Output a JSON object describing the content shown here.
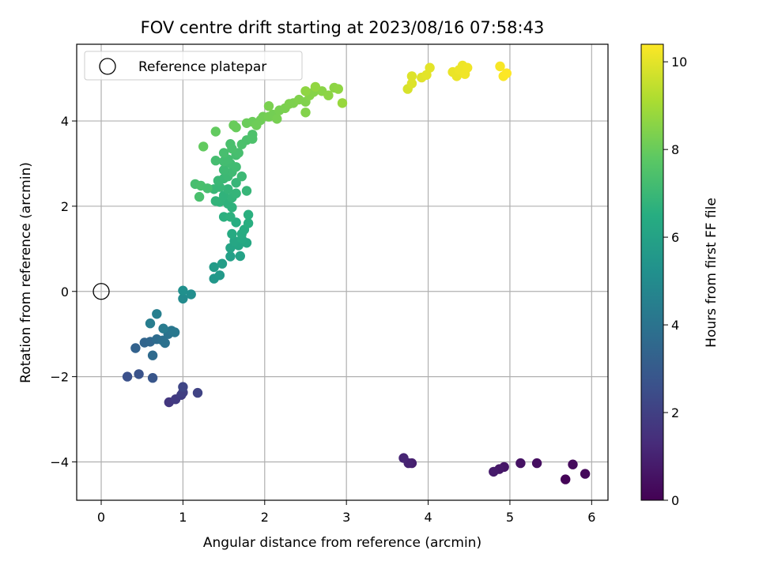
{
  "chart_data": {
    "type": "scatter",
    "title": "FOV centre drift starting at 2023/08/16 07:58:43",
    "xlabel": "Angular distance from reference (arcmin)",
    "ylabel": "Rotation from reference (arcmin)",
    "xlim": [
      -0.3,
      6.2
    ],
    "ylim": [
      -4.9,
      5.8
    ],
    "xticks": [
      0,
      1,
      2,
      3,
      4,
      5,
      6
    ],
    "yticks": [
      -4,
      -2,
      0,
      2,
      4
    ],
    "grid": true,
    "legend": {
      "position": "top-left",
      "entries": [
        "Reference platepar"
      ]
    },
    "reference_point": {
      "x": 0,
      "y": 0,
      "label": "Reference platepar"
    },
    "colorbar": {
      "label": "Hours from first FF file",
      "colormap": "viridis",
      "range": [
        0,
        10.4
      ],
      "ticks": [
        0,
        2,
        4,
        6,
        8,
        10
      ]
    },
    "series": [
      {
        "points": [
          [
            5.68,
            -4.41,
            0.1
          ],
          [
            5.92,
            -4.28,
            0.2
          ],
          [
            5.77,
            -4.06,
            0.3
          ],
          [
            5.33,
            -4.03,
            0.4
          ],
          [
            5.13,
            -4.03,
            0.5
          ],
          [
            4.93,
            -4.12,
            0.6
          ],
          [
            4.87,
            -4.17,
            0.7
          ],
          [
            4.8,
            -4.23,
            0.8
          ],
          [
            3.8,
            -4.03,
            0.9
          ],
          [
            3.76,
            -4.03,
            1.0
          ],
          [
            3.7,
            -3.91,
            1.1
          ],
          [
            0.83,
            -2.6,
            1.7
          ],
          [
            0.91,
            -2.53,
            1.8
          ],
          [
            0.98,
            -2.43,
            1.9
          ],
          [
            1.0,
            -2.37,
            2.0
          ],
          [
            1.18,
            -2.38,
            2.1
          ],
          [
            1.0,
            -2.24,
            2.2
          ],
          [
            0.32,
            -2.0,
            2.6
          ],
          [
            0.46,
            -1.94,
            2.7
          ],
          [
            0.63,
            -2.03,
            2.8
          ],
          [
            0.42,
            -1.33,
            3.3
          ],
          [
            0.53,
            -1.2,
            3.4
          ],
          [
            0.6,
            -1.18,
            3.5
          ],
          [
            0.63,
            -1.5,
            3.6
          ],
          [
            0.68,
            -1.12,
            3.7
          ],
          [
            0.75,
            -1.15,
            3.8
          ],
          [
            0.78,
            -1.21,
            3.9
          ],
          [
            0.82,
            -1.0,
            4.0
          ],
          [
            0.86,
            -0.92,
            4.1
          ],
          [
            0.9,
            -0.96,
            4.2
          ],
          [
            0.76,
            -0.87,
            4.3
          ],
          [
            0.6,
            -0.75,
            4.4
          ],
          [
            0.68,
            -0.53,
            4.5
          ],
          [
            1.0,
            -0.17,
            5.0
          ],
          [
            1.1,
            -0.07,
            5.1
          ],
          [
            1.0,
            0.02,
            5.2
          ],
          [
            1.38,
            0.3,
            5.5
          ],
          [
            1.45,
            0.38,
            5.6
          ],
          [
            1.38,
            0.57,
            5.7
          ],
          [
            1.48,
            0.65,
            5.8
          ],
          [
            1.58,
            0.82,
            5.9
          ],
          [
            1.7,
            0.83,
            6.0
          ],
          [
            1.58,
            1.02,
            6.1
          ],
          [
            1.68,
            1.08,
            6.15
          ],
          [
            1.63,
            1.18,
            6.2
          ],
          [
            1.78,
            1.14,
            6.25
          ],
          [
            1.72,
            1.23,
            6.3
          ],
          [
            1.6,
            1.35,
            6.35
          ],
          [
            1.72,
            1.35,
            6.4
          ],
          [
            1.75,
            1.45,
            6.45
          ],
          [
            1.65,
            1.62,
            6.5
          ],
          [
            1.8,
            1.6,
            6.55
          ],
          [
            1.8,
            1.8,
            6.6
          ],
          [
            1.5,
            1.75,
            6.6
          ],
          [
            1.58,
            1.75,
            6.65
          ],
          [
            1.6,
            1.97,
            6.7
          ],
          [
            1.55,
            2.06,
            6.7
          ],
          [
            1.45,
            2.1,
            6.75
          ],
          [
            1.5,
            2.25,
            6.75
          ],
          [
            1.4,
            2.12,
            6.8
          ],
          [
            1.6,
            2.2,
            6.8
          ],
          [
            1.55,
            2.4,
            6.85
          ],
          [
            1.65,
            2.3,
            6.85
          ],
          [
            1.78,
            2.36,
            6.9
          ],
          [
            1.65,
            2.55,
            6.9
          ],
          [
            1.45,
            2.45,
            6.95
          ],
          [
            1.38,
            2.4,
            6.95
          ],
          [
            1.43,
            2.6,
            7.0
          ],
          [
            1.5,
            2.65,
            7.0
          ],
          [
            1.55,
            2.7,
            7.05
          ],
          [
            1.72,
            2.7,
            7.05
          ],
          [
            1.6,
            2.8,
            7.1
          ],
          [
            1.5,
            2.85,
            7.1
          ],
          [
            1.65,
            2.92,
            7.15
          ],
          [
            1.58,
            3.0,
            7.15
          ],
          [
            1.5,
            3.05,
            7.2
          ],
          [
            1.55,
            3.1,
            7.2
          ],
          [
            1.4,
            3.07,
            7.25
          ],
          [
            1.65,
            3.2,
            7.25
          ],
          [
            1.5,
            3.25,
            7.3
          ],
          [
            1.68,
            3.25,
            7.3
          ],
          [
            1.6,
            3.35,
            7.35
          ],
          [
            1.58,
            3.46,
            7.35
          ],
          [
            1.72,
            3.45,
            7.4
          ],
          [
            1.78,
            3.55,
            7.4
          ],
          [
            1.85,
            3.58,
            7.45
          ],
          [
            1.85,
            3.68,
            7.45
          ],
          [
            1.15,
            2.52,
            7.3
          ],
          [
            1.22,
            2.48,
            7.35
          ],
          [
            1.3,
            2.42,
            7.3
          ],
          [
            1.2,
            2.22,
            7.35
          ],
          [
            1.25,
            3.4,
            7.9
          ],
          [
            1.4,
            3.75,
            7.9
          ],
          [
            1.65,
            3.85,
            8.0
          ],
          [
            1.62,
            3.9,
            8.0
          ],
          [
            1.78,
            3.95,
            8.05
          ],
          [
            1.85,
            3.98,
            8.05
          ],
          [
            1.9,
            3.9,
            8.1
          ],
          [
            1.95,
            4.02,
            8.1
          ],
          [
            1.98,
            4.1,
            8.15
          ],
          [
            2.05,
            4.1,
            8.2
          ],
          [
            2.1,
            4.15,
            8.2
          ],
          [
            2.15,
            4.05,
            8.25
          ],
          [
            2.18,
            4.25,
            8.25
          ],
          [
            2.05,
            4.35,
            8.3
          ],
          [
            2.25,
            4.3,
            8.3
          ],
          [
            2.3,
            4.4,
            8.35
          ],
          [
            2.35,
            4.42,
            8.35
          ],
          [
            2.42,
            4.5,
            8.4
          ],
          [
            2.5,
            4.45,
            8.4
          ],
          [
            2.5,
            4.2,
            8.45
          ],
          [
            2.55,
            4.6,
            8.5
          ],
          [
            2.6,
            4.68,
            8.5
          ],
          [
            2.7,
            4.7,
            8.55
          ],
          [
            2.78,
            4.6,
            8.6
          ],
          [
            2.85,
            4.78,
            8.6
          ],
          [
            2.9,
            4.75,
            8.65
          ],
          [
            2.5,
            4.7,
            8.65
          ],
          [
            2.62,
            4.8,
            8.7
          ],
          [
            2.95,
            4.42,
            8.8
          ],
          [
            3.75,
            4.75,
            9.8
          ],
          [
            3.8,
            4.88,
            9.9
          ],
          [
            3.8,
            5.05,
            9.9
          ],
          [
            3.92,
            5.02,
            9.95
          ],
          [
            3.98,
            5.08,
            10.0
          ],
          [
            4.02,
            5.25,
            10.0
          ],
          [
            4.3,
            5.15,
            10.1
          ],
          [
            4.35,
            5.05,
            10.1
          ],
          [
            4.38,
            5.2,
            10.15
          ],
          [
            4.42,
            5.3,
            10.15
          ],
          [
            4.45,
            5.1,
            10.2
          ],
          [
            4.48,
            5.25,
            10.2
          ],
          [
            4.88,
            5.28,
            10.3
          ],
          [
            4.92,
            5.05,
            10.35
          ],
          [
            4.96,
            5.12,
            10.4
          ]
        ]
      }
    ]
  }
}
